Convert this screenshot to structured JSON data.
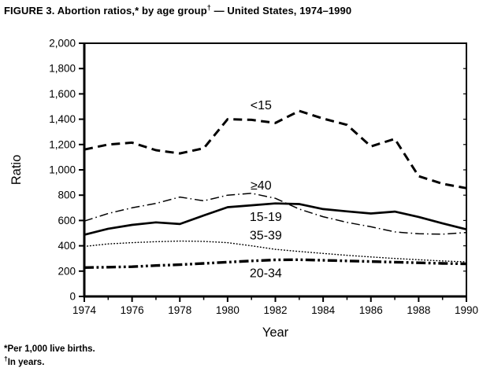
{
  "figure": {
    "title_prefix": "FIGURE 3. Abortion ratios,* by age group",
    "title_dagger": "†",
    "title_suffix": " — United States, 1974–1990",
    "footnotes": [
      {
        "symbol": "*",
        "text": "Per 1,000 live births."
      },
      {
        "symbol": "†",
        "text": "In years."
      }
    ]
  },
  "chart_data": {
    "type": "line",
    "title": "FIGURE 3. Abortion ratios, by age group — United States, 1974–1990",
    "xlabel": "Year",
    "ylabel": "Ratio",
    "x": [
      1974,
      1975,
      1976,
      1977,
      1978,
      1979,
      1980,
      1981,
      1982,
      1983,
      1984,
      1985,
      1986,
      1987,
      1988,
      1989,
      1990
    ],
    "xlim": [
      1974,
      1990
    ],
    "ylim": [
      0,
      2000
    ],
    "ytick_interval": 200,
    "xtick_label_interval": 2,
    "grid": false,
    "legend_position": "inline-labels",
    "units": "abortions per 1,000 live births",
    "series": [
      {
        "name": "<15",
        "style": "dashed",
        "color": "#000000",
        "values": [
          1160,
          1200,
          1215,
          1155,
          1130,
          1170,
          1400,
          1395,
          1370,
          1465,
          1405,
          1355,
          1185,
          1245,
          950,
          890,
          855
        ]
      },
      {
        "name": "≥40",
        "style": "dashdot",
        "color": "#000000",
        "values": [
          595,
          655,
          700,
          735,
          785,
          755,
          800,
          815,
          775,
          690,
          630,
          585,
          550,
          510,
          495,
          492,
          505
        ]
      },
      {
        "name": "15-19",
        "style": "solid",
        "color": "#000000",
        "values": [
          487,
          535,
          565,
          585,
          572,
          640,
          705,
          720,
          735,
          730,
          690,
          672,
          655,
          670,
          628,
          577,
          530
        ]
      },
      {
        "name": "35-39",
        "style": "dotted",
        "color": "#000000",
        "values": [
          395,
          415,
          425,
          432,
          437,
          435,
          425,
          400,
          372,
          355,
          340,
          325,
          312,
          300,
          290,
          280,
          273
        ]
      },
      {
        "name": "20-34",
        "style": "dashdotdot",
        "color": "#000000",
        "values": [
          228,
          231,
          235,
          244,
          251,
          261,
          271,
          281,
          289,
          290,
          286,
          281,
          276,
          271,
          266,
          261,
          258
        ]
      }
    ],
    "series_labels": [
      {
        "text": "<15",
        "year": 1981.4,
        "value": 1512
      },
      {
        "text": "≥40",
        "year": 1981.4,
        "value": 880
      },
      {
        "text": "15-19",
        "year": 1981.6,
        "value": 630
      },
      {
        "text": "35-39",
        "year": 1981.6,
        "value": 483
      },
      {
        "text": "20-34",
        "year": 1981.6,
        "value": 186
      }
    ]
  }
}
